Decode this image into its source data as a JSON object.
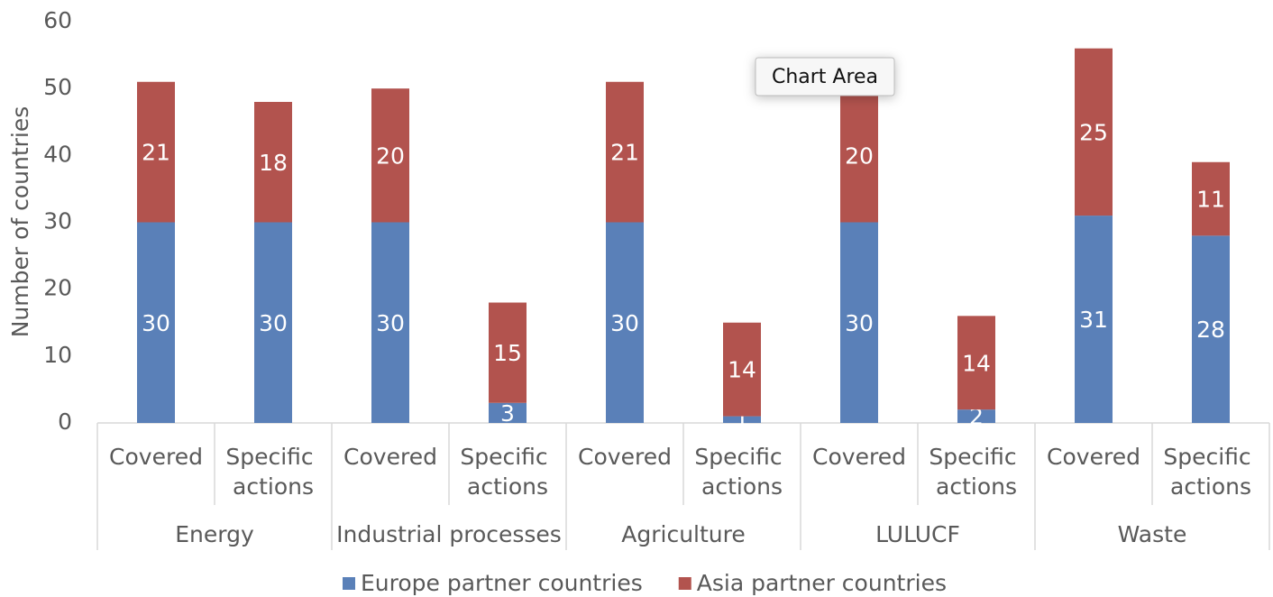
{
  "chart_data": {
    "type": "stacked_bar",
    "y_axis_label": "Number of countries",
    "categories": [
      "Covered",
      "Specific actions",
      "Covered",
      "Specific actions",
      "Covered",
      "Specific actions",
      "Covered",
      "Specific actions",
      "Covered",
      "Specific actions"
    ],
    "groups": [
      "Energy",
      "Industrial processes",
      "Agriculture",
      "LULUCF",
      "Waste"
    ],
    "series": [
      {
        "name": "Europe partner countries",
        "color": "#5a80b8",
        "values": [
          30,
          30,
          30,
          3,
          30,
          1,
          30,
          2,
          31,
          28
        ]
      },
      {
        "name": "Asia partner countries",
        "color": "#b2534e",
        "values": [
          21,
          18,
          20,
          15,
          21,
          14,
          20,
          14,
          25,
          11
        ]
      }
    ],
    "ylim": [
      0,
      60
    ],
    "yticks": [
      0,
      10,
      20,
      30,
      40,
      50,
      60
    ],
    "legend": "bottom",
    "data_labels": true,
    "tooltip": "Chart Area"
  }
}
